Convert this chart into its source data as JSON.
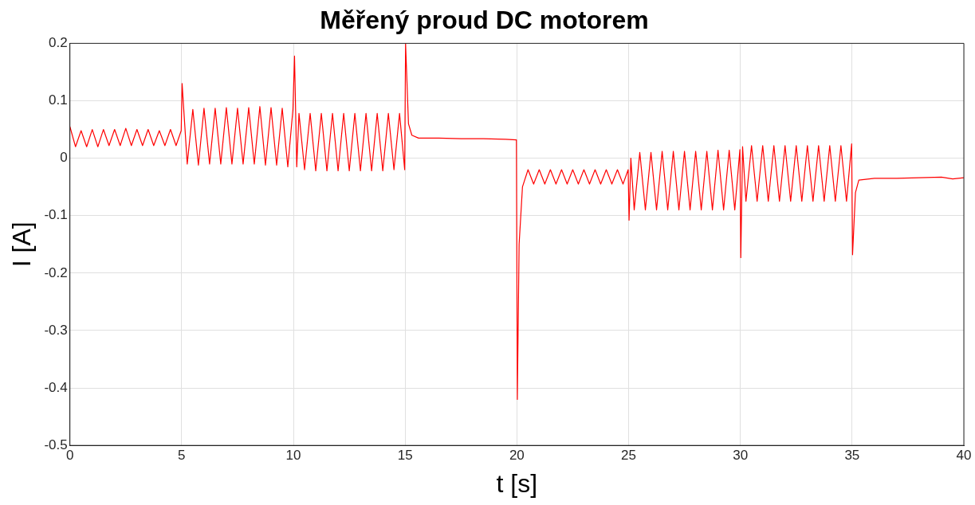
{
  "chart_data": {
    "type": "line",
    "title": "Měřený proud DC motorem",
    "xlabel": "t [s]",
    "ylabel": "I [A]",
    "xlim": [
      0,
      40
    ],
    "xticks": [
      0,
      5,
      10,
      15,
      20,
      25,
      30,
      35,
      40
    ],
    "ylim": [
      -0.5,
      0.2
    ],
    "yticks": [
      -0.5,
      -0.4,
      -0.3,
      -0.2,
      -0.1,
      0,
      0.1,
      0.2
    ],
    "grid": true,
    "legend": false,
    "marker": "none",
    "line_style": "solid",
    "series": [
      {
        "color": "#ff0000",
        "x": [
          0,
          0.25,
          0.5,
          0.75,
          1,
          1.25,
          1.5,
          1.75,
          2,
          2.25,
          2.5,
          2.75,
          3,
          3.25,
          3.5,
          3.75,
          4,
          4.25,
          4.5,
          4.75,
          4.98,
          5.02,
          5.25,
          5.5,
          5.75,
          6,
          6.25,
          6.5,
          6.75,
          7,
          7.25,
          7.5,
          7.75,
          8,
          8.25,
          8.5,
          8.75,
          9,
          9.25,
          9.5,
          9.75,
          9.98,
          10.05,
          10.15,
          10.25,
          10.5,
          10.75,
          11,
          11.25,
          11.5,
          11.75,
          12,
          12.25,
          12.5,
          12.75,
          13,
          13.25,
          13.5,
          13.75,
          14,
          14.25,
          14.5,
          14.75,
          14.98,
          15.02,
          15.15,
          15.3,
          15.6,
          16.5,
          17.5,
          18.5,
          19.5,
          19.98,
          20.02,
          20.1,
          20.25,
          20.5,
          20.75,
          21,
          21.25,
          21.5,
          21.75,
          22,
          22.25,
          22.5,
          22.75,
          23,
          23.25,
          23.5,
          23.75,
          24,
          24.25,
          24.5,
          24.75,
          24.98,
          25.02,
          25.1,
          25.25,
          25.5,
          25.75,
          26,
          26.25,
          26.5,
          26.75,
          27,
          27.25,
          27.5,
          27.75,
          28,
          28.25,
          28.5,
          28.75,
          29,
          29.25,
          29.5,
          29.75,
          29.98,
          30.02,
          30.1,
          30.25,
          30.5,
          30.75,
          31,
          31.25,
          31.5,
          31.75,
          32,
          32.25,
          32.5,
          32.75,
          33,
          33.25,
          33.5,
          33.75,
          34,
          34.25,
          34.5,
          34.75,
          34.98,
          35.02,
          35.15,
          35.3,
          36,
          37,
          38,
          39,
          39.5,
          40
        ],
        "values": [
          0.055,
          0.02,
          0.048,
          0.02,
          0.05,
          0.02,
          0.05,
          0.022,
          0.05,
          0.022,
          0.052,
          0.022,
          0.05,
          0.022,
          0.05,
          0.022,
          0.048,
          0.022,
          0.05,
          0.022,
          0.048,
          0.13,
          -0.01,
          0.085,
          -0.012,
          0.087,
          -0.01,
          0.087,
          -0.01,
          0.088,
          -0.01,
          0.087,
          -0.01,
          0.088,
          -0.01,
          0.09,
          -0.012,
          0.088,
          -0.012,
          0.087,
          -0.015,
          0.085,
          0.178,
          -0.015,
          0.078,
          -0.02,
          0.078,
          -0.022,
          0.078,
          -0.022,
          0.078,
          -0.022,
          0.078,
          -0.022,
          0.078,
          -0.022,
          0.078,
          -0.022,
          0.078,
          -0.022,
          0.078,
          -0.02,
          0.078,
          -0.02,
          0.2,
          0.06,
          0.04,
          0.035,
          0.035,
          0.034,
          0.034,
          0.033,
          0.032,
          -0.42,
          -0.15,
          -0.05,
          -0.02,
          -0.045,
          -0.02,
          -0.045,
          -0.02,
          -0.045,
          -0.02,
          -0.045,
          -0.02,
          -0.045,
          -0.02,
          -0.045,
          -0.02,
          -0.045,
          -0.02,
          -0.045,
          -0.02,
          -0.045,
          -0.02,
          -0.108,
          0,
          -0.09,
          0.01,
          -0.09,
          0.01,
          -0.09,
          0.012,
          -0.09,
          0.012,
          -0.09,
          0.012,
          -0.09,
          0.012,
          -0.09,
          0.012,
          -0.09,
          0.014,
          -0.09,
          0.014,
          -0.09,
          0.015,
          -0.173,
          0.02,
          -0.075,
          0.022,
          -0.075,
          0.022,
          -0.075,
          0.022,
          -0.075,
          0.022,
          -0.075,
          0.022,
          -0.075,
          0.022,
          -0.075,
          0.022,
          -0.075,
          0.022,
          -0.075,
          0.022,
          -0.075,
          0.025,
          -0.168,
          -0.06,
          -0.038,
          -0.035,
          -0.035,
          -0.034,
          -0.033,
          -0.036,
          -0.034
        ]
      }
    ]
  }
}
